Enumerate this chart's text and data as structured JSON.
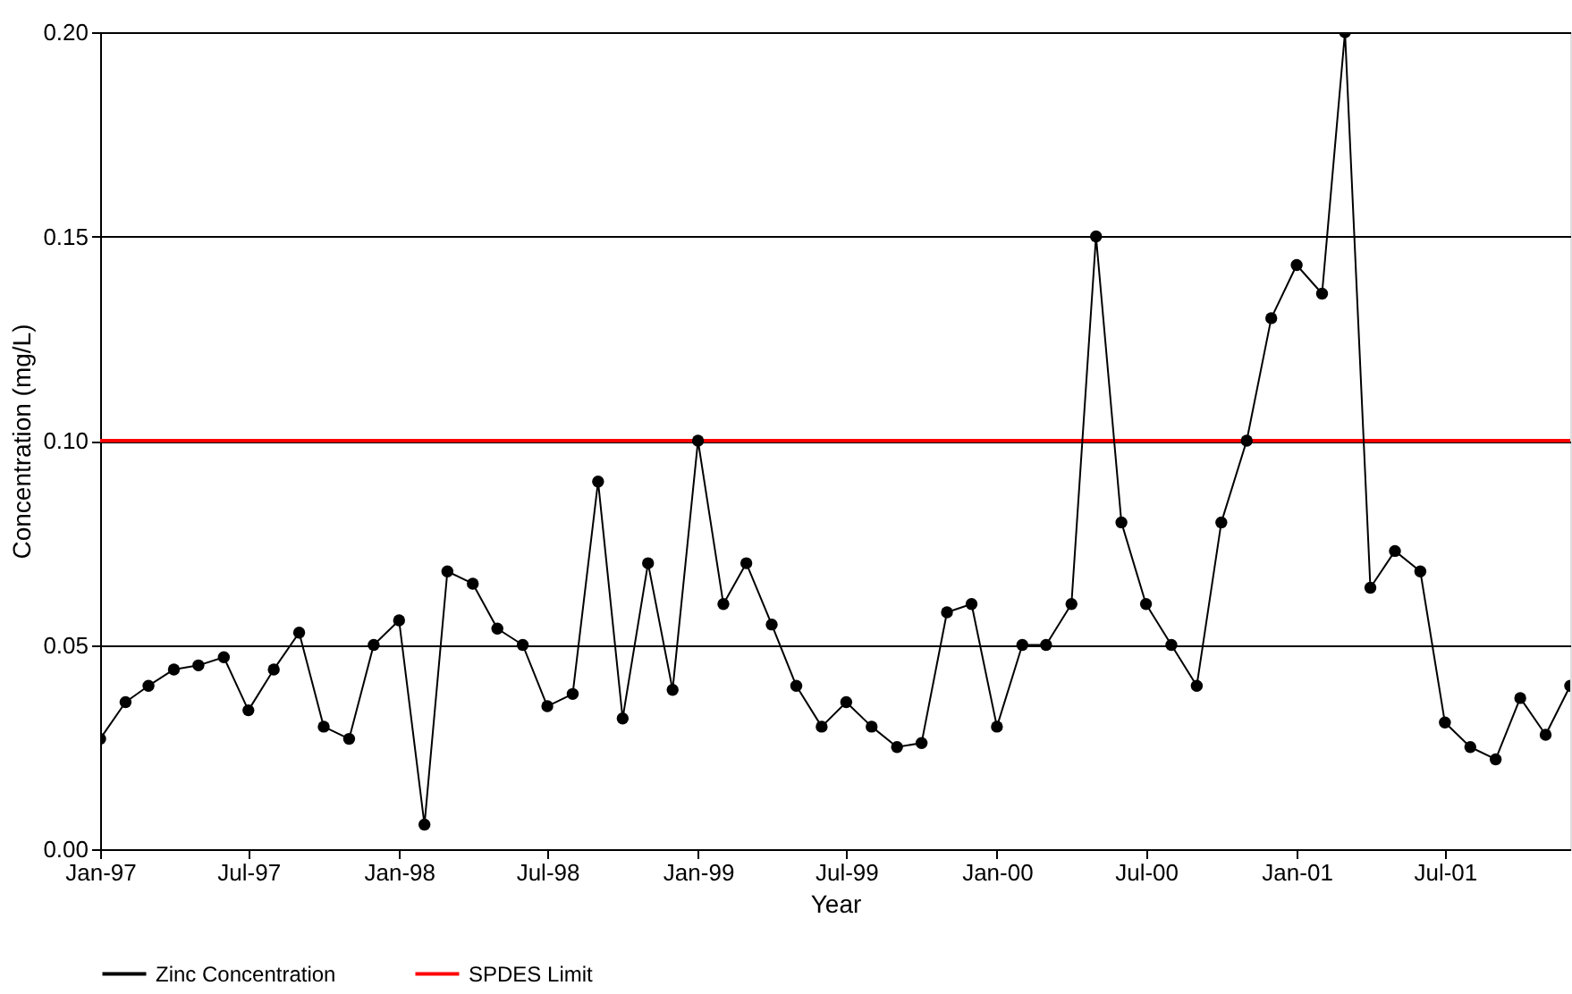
{
  "chart_data": {
    "type": "line",
    "xlabel": "Year",
    "ylabel": "Concentration (mg/L)",
    "x": [
      "1997-01",
      "1997-02",
      "1997-03",
      "1997-04",
      "1997-05",
      "1997-06",
      "1997-07",
      "1997-08",
      "1997-09",
      "1997-10",
      "1997-11",
      "1997-12",
      "1998-01",
      "1998-02",
      "1998-03",
      "1998-04",
      "1998-05",
      "1998-06",
      "1998-07",
      "1998-08",
      "1998-09",
      "1998-10",
      "1998-11",
      "1998-12",
      "1999-01",
      "1999-02",
      "1999-03",
      "1999-04",
      "1999-05",
      "1999-06",
      "1999-07",
      "1999-08",
      "1999-09",
      "1999-10",
      "1999-11",
      "1999-12",
      "2000-01",
      "2000-02",
      "2000-03",
      "2000-04",
      "2000-05",
      "2000-06",
      "2000-07",
      "2000-08",
      "2000-09",
      "2000-10",
      "2000-11",
      "2000-12",
      "2001-01",
      "2001-02",
      "2001-03",
      "2001-04",
      "2001-05",
      "2001-06",
      "2001-07",
      "2001-08",
      "2001-09",
      "2001-10",
      "2001-11",
      "2001-12"
    ],
    "series": [
      {
        "name": "Zinc Concentration",
        "color": "#000000",
        "marker": "circle",
        "values": [
          0.027,
          0.036,
          0.04,
          0.044,
          0.045,
          0.047,
          0.034,
          0.044,
          0.053,
          0.03,
          0.027,
          0.05,
          0.056,
          0.006,
          0.068,
          0.065,
          0.054,
          0.05,
          0.035,
          0.038,
          0.09,
          0.032,
          0.07,
          0.039,
          0.1,
          0.06,
          0.07,
          0.055,
          0.04,
          0.03,
          0.036,
          0.03,
          0.025,
          0.026,
          0.058,
          0.06,
          0.03,
          0.05,
          0.05,
          0.06,
          0.15,
          0.08,
          0.06,
          0.05,
          0.04,
          0.08,
          0.1,
          0.13,
          0.143,
          0.136,
          0.2,
          0.064,
          0.073,
          0.068,
          0.031,
          0.025,
          0.022,
          0.037,
          0.028,
          0.04
        ]
      }
    ],
    "ref_lines": [
      {
        "axis": "y",
        "value": 0.1,
        "label": "SPDES Limit",
        "color": "#ff0000"
      }
    ],
    "xlim": [
      "1997-01",
      "2001-12"
    ],
    "xticks": [
      {
        "value": "1997-01",
        "label": "Jan-97"
      },
      {
        "value": "1997-07",
        "label": "Jul-97"
      },
      {
        "value": "1998-01",
        "label": "Jan-98"
      },
      {
        "value": "1998-07",
        "label": "Jul-98"
      },
      {
        "value": "1999-01",
        "label": "Jan-99"
      },
      {
        "value": "1999-07",
        "label": "Jul-99"
      },
      {
        "value": "2000-01",
        "label": "Jan-00"
      },
      {
        "value": "2000-07",
        "label": "Jul-00"
      },
      {
        "value": "2001-01",
        "label": "Jan-01"
      },
      {
        "value": "2001-07",
        "label": "Jul-01"
      }
    ],
    "ylim": [
      0,
      0.2
    ],
    "yticks": [
      {
        "value": 0,
        "label": "0.00"
      },
      {
        "value": 0.05,
        "label": "0.05"
      },
      {
        "value": 0.1,
        "label": "0.10"
      },
      {
        "value": 0.15,
        "label": "0.15"
      },
      {
        "value": 0.2,
        "label": "0.20"
      }
    ],
    "grid": "y",
    "legend": "bottom"
  }
}
